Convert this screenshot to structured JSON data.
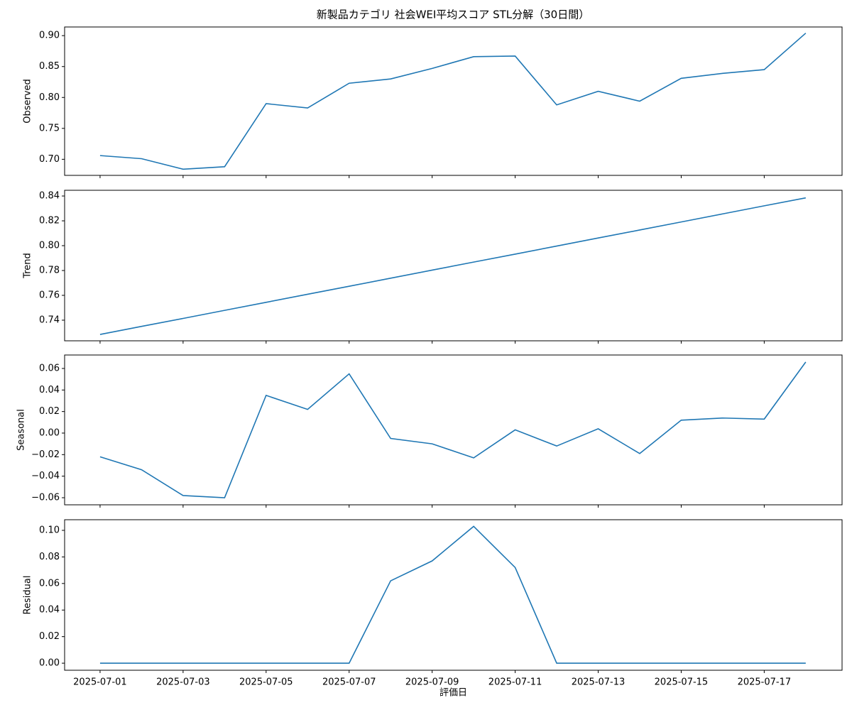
{
  "chart_data": [
    {
      "type": "line",
      "title": "新製品カテゴリ 社会WEI平均スコア STL分解（30日間）",
      "ylabel": "Observed",
      "x": [
        "2025-07-01",
        "2025-07-02",
        "2025-07-03",
        "2025-07-04",
        "2025-07-05",
        "2025-07-06",
        "2025-07-07",
        "2025-07-08",
        "2025-07-09",
        "2025-07-10",
        "2025-07-11",
        "2025-07-12",
        "2025-07-13",
        "2025-07-14",
        "2025-07-15",
        "2025-07-16",
        "2025-07-17",
        "2025-07-18"
      ],
      "values": [
        0.706,
        0.701,
        0.684,
        0.688,
        0.79,
        0.783,
        0.823,
        0.83,
        0.847,
        0.866,
        0.867,
        0.788,
        0.81,
        0.794,
        0.831,
        0.839,
        0.845,
        0.904
      ],
      "color": "#1f77b4",
      "xlim": [
        "2025-06-30T03:30",
        "2025-07-18T21:00"
      ],
      "ylim": [
        0.674,
        0.914
      ],
      "yticks": [
        {
          "value": 0.7,
          "label": "0.70"
        },
        {
          "value": 0.75,
          "label": "0.75"
        },
        {
          "value": 0.8,
          "label": "0.80"
        },
        {
          "value": 0.85,
          "label": "0.85"
        },
        {
          "value": 0.9,
          "label": "0.90"
        }
      ]
    },
    {
      "type": "line",
      "ylabel": "Trend",
      "x": [
        "2025-07-01",
        "2025-07-02",
        "2025-07-03",
        "2025-07-04",
        "2025-07-05",
        "2025-07-06",
        "2025-07-07",
        "2025-07-08",
        "2025-07-09",
        "2025-07-10",
        "2025-07-11",
        "2025-07-12",
        "2025-07-13",
        "2025-07-14",
        "2025-07-15",
        "2025-07-16",
        "2025-07-17",
        "2025-07-18"
      ],
      "values": [
        0.7285,
        0.735,
        0.7414,
        0.7479,
        0.7544,
        0.7609,
        0.7673,
        0.7738,
        0.7803,
        0.7868,
        0.7932,
        0.7997,
        0.8062,
        0.8126,
        0.8191,
        0.8256,
        0.8321,
        0.8385
      ],
      "color": "#1f77b4",
      "xlim": [
        "2025-06-30T03:30",
        "2025-07-18T21:00"
      ],
      "ylim": [
        0.7234,
        0.8446
      ],
      "yticks": [
        {
          "value": 0.74,
          "label": "0.74"
        },
        {
          "value": 0.76,
          "label": "0.76"
        },
        {
          "value": 0.78,
          "label": "0.78"
        },
        {
          "value": 0.8,
          "label": "0.80"
        },
        {
          "value": 0.82,
          "label": "0.82"
        },
        {
          "value": 0.84,
          "label": "0.84"
        }
      ]
    },
    {
      "type": "line",
      "ylabel": "Seasonal",
      "x": [
        "2025-07-01",
        "2025-07-02",
        "2025-07-03",
        "2025-07-04",
        "2025-07-05",
        "2025-07-06",
        "2025-07-07",
        "2025-07-08",
        "2025-07-09",
        "2025-07-10",
        "2025-07-11",
        "2025-07-12",
        "2025-07-13",
        "2025-07-14",
        "2025-07-15",
        "2025-07-16",
        "2025-07-17",
        "2025-07-18"
      ],
      "values": [
        -0.022,
        -0.034,
        -0.058,
        -0.06,
        0.035,
        0.022,
        0.055,
        -0.005,
        -0.01,
        -0.023,
        0.003,
        -0.012,
        0.004,
        -0.019,
        0.012,
        0.014,
        0.013,
        0.066
      ],
      "color": "#1f77b4",
      "xlim": [
        "2025-06-30T03:30",
        "2025-07-18T21:00"
      ],
      "ylim": [
        -0.0666,
        0.0725
      ],
      "yticks": [
        {
          "value": -0.06,
          "label": "−0.06"
        },
        {
          "value": -0.04,
          "label": "−0.04"
        },
        {
          "value": -0.02,
          "label": "−0.02"
        },
        {
          "value": 0,
          "label": "0.00"
        },
        {
          "value": 0.02,
          "label": "0.02"
        },
        {
          "value": 0.04,
          "label": "0.04"
        },
        {
          "value": 0.06,
          "label": "0.06"
        }
      ]
    },
    {
      "type": "line",
      "ylabel": "Residual",
      "xlabel": "評価日",
      "x": [
        "2025-07-01",
        "2025-07-02",
        "2025-07-03",
        "2025-07-04",
        "2025-07-05",
        "2025-07-06",
        "2025-07-07",
        "2025-07-08",
        "2025-07-09",
        "2025-07-10",
        "2025-07-11",
        "2025-07-12",
        "2025-07-13",
        "2025-07-14",
        "2025-07-15",
        "2025-07-16",
        "2025-07-17",
        "2025-07-18"
      ],
      "values": [
        0,
        0,
        0,
        0,
        0,
        0,
        0,
        0.062,
        0.077,
        0.103,
        0.072,
        0,
        0,
        0,
        0,
        0,
        0,
        0
      ],
      "color": "#1f77b4",
      "xlim": [
        "2025-06-30T03:30",
        "2025-07-18T21:00"
      ],
      "ylim": [
        -0.0053,
        0.108
      ],
      "yticks": [
        {
          "value": 0,
          "label": "0.00"
        },
        {
          "value": 0.02,
          "label": "0.02"
        },
        {
          "value": 0.04,
          "label": "0.04"
        },
        {
          "value": 0.06,
          "label": "0.06"
        },
        {
          "value": 0.08,
          "label": "0.08"
        },
        {
          "value": 0.1,
          "label": "0.10"
        }
      ],
      "xticks": [
        "2025-07-01",
        "2025-07-03",
        "2025-07-05",
        "2025-07-07",
        "2025-07-09",
        "2025-07-11",
        "2025-07-13",
        "2025-07-15",
        "2025-07-17"
      ]
    }
  ]
}
